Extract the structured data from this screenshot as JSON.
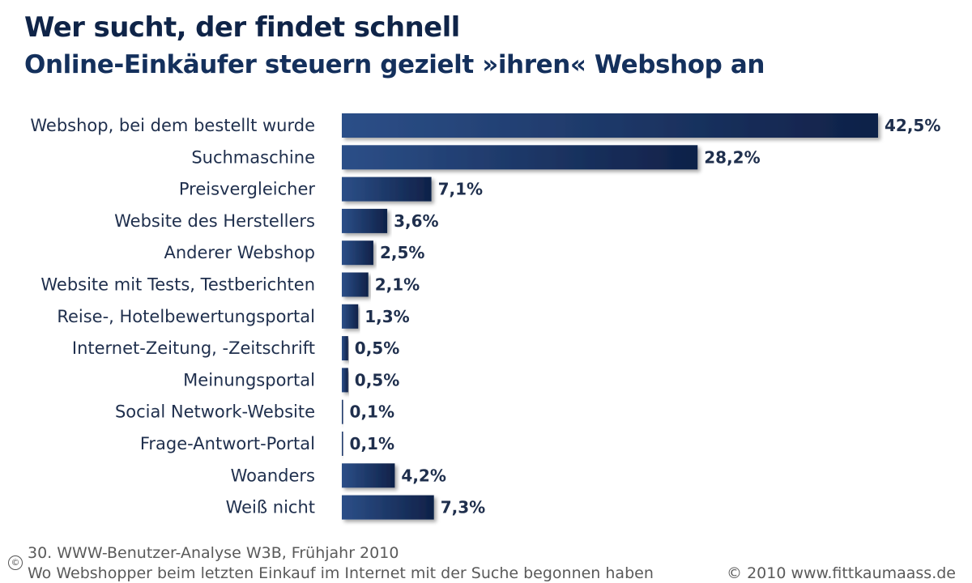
{
  "header": {
    "title": "Wer sucht, der findet schnell",
    "subtitle": "Online-Einkäufer steuern gezielt »ihren« Webshop an"
  },
  "footer": {
    "source": "30. WWW-Benutzer-Analyse W3B, Frühjahr 2010",
    "note": "Wo Webshopper beim letzten Einkauf im Internet mit der Suche begonnen haben",
    "copyright": "© 2010 www.fittkaumaass.de",
    "copy_mark": "©"
  },
  "colors": {
    "bar_dark": "#0f2148",
    "bar_light": "#2c4f88"
  },
  "chart_data": {
    "type": "bar",
    "orientation": "horizontal",
    "categories": [
      "Webshop, bei dem bestellt wurde",
      "Suchmaschine",
      "Preisvergleicher",
      "Website des Herstellers",
      "Anderer Webshop",
      "Website mit Tests, Testberichten",
      "Reise-, Hotelbewertungsportal",
      "Internet-Zeitung, -Zeitschrift",
      "Meinungsportal",
      "Social Network-Website",
      "Frage-Antwort-Portal",
      "Woanders",
      "Weiß nicht"
    ],
    "values": [
      42.5,
      28.2,
      7.1,
      3.6,
      2.5,
      2.1,
      1.3,
      0.5,
      0.5,
      0.1,
      0.1,
      4.2,
      7.3
    ],
    "value_labels": [
      "42,5%",
      "28,2%",
      "7,1%",
      "3,6%",
      "2,5%",
      "2,1%",
      "1,3%",
      "0,5%",
      "0,5%",
      "0,1%",
      "0,1%",
      "4,2%",
      "7,3%"
    ],
    "title": "Wer sucht, der findet schnell",
    "subtitle": "Online-Einkäufer steuern gezielt »ihren« Webshop an",
    "xlabel": "",
    "ylabel": "",
    "grid": false
  }
}
